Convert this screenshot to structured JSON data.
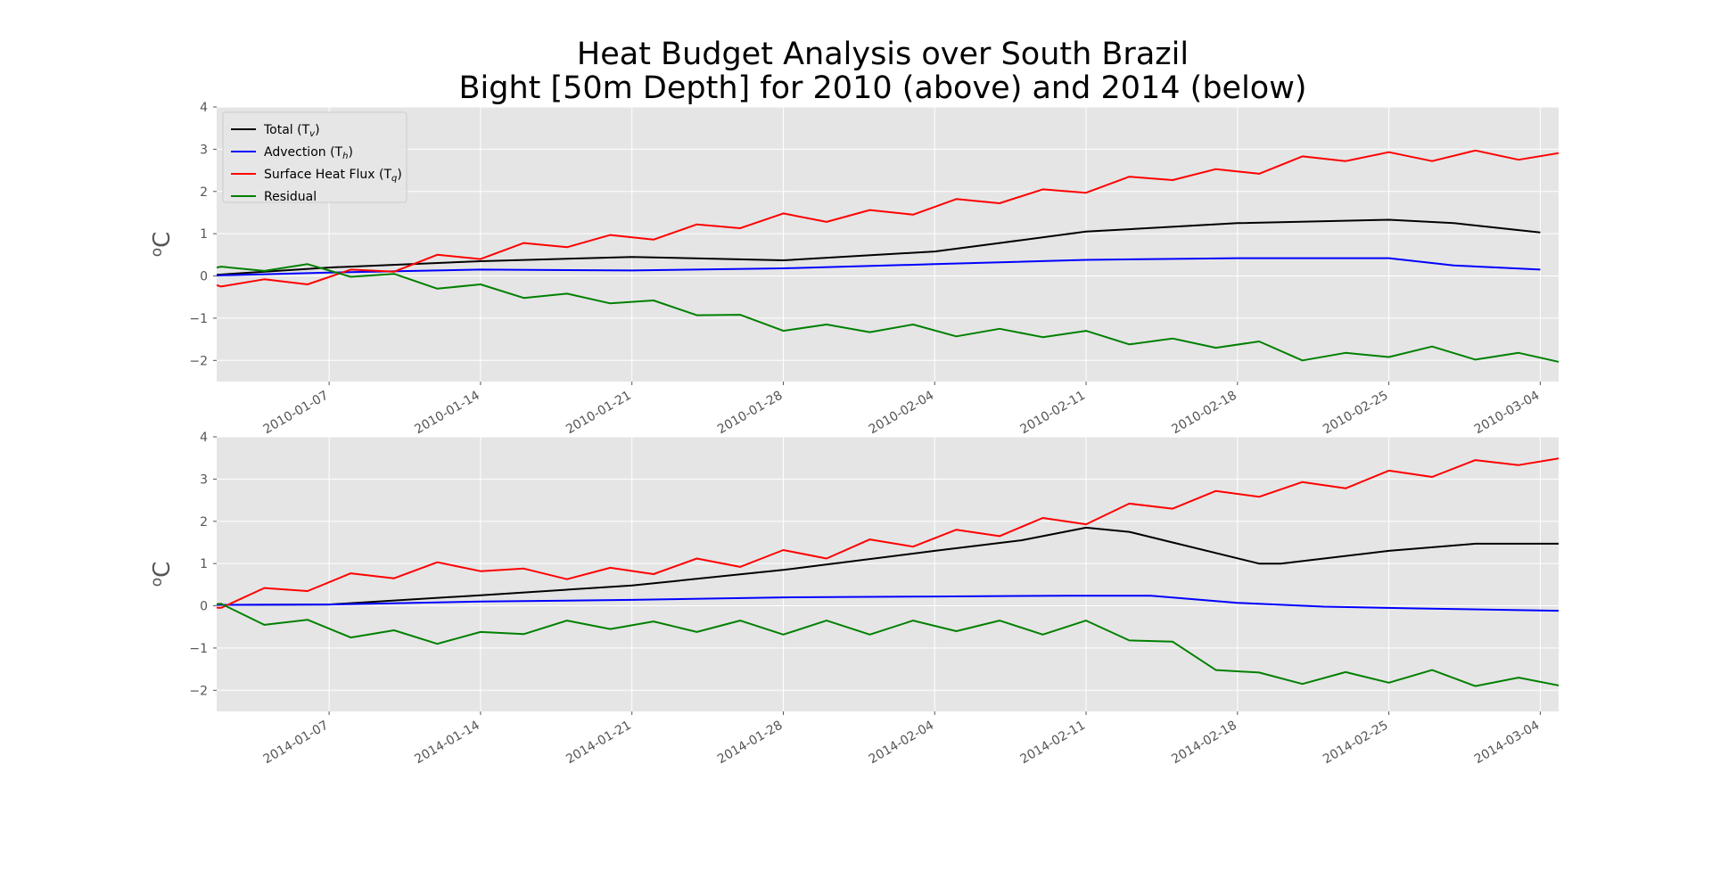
{
  "figure": {
    "title_line1": "Heat Budget Analysis over South Brazil",
    "title_line2": "Bight [50m Depth] for 2010 (above) and 2014 (below)"
  },
  "legend": {
    "items": [
      {
        "key": "total",
        "label": "Total (T",
        "sub": "v",
        "close": ")",
        "color": "#000000"
      },
      {
        "key": "advection",
        "label": "Advection (T",
        "sub": "h",
        "close": ")",
        "color": "#0000ff"
      },
      {
        "key": "surface",
        "label": "Surface Heat Flux (T",
        "sub": "q",
        "close": ")",
        "color": "#ff0000"
      },
      {
        "key": "residual",
        "label": "Residual",
        "sub": "",
        "close": "",
        "color": "#008000"
      }
    ]
  },
  "chart_data": [
    {
      "type": "line",
      "xlim": [
        "2010-01-01",
        "2010-03-05"
      ],
      "ylim": [
        -2.5,
        4
      ],
      "yticks": [
        -2,
        -1,
        0,
        1,
        2,
        3,
        4
      ],
      "xtick_labels": [
        "2010-01-07",
        "2010-01-14",
        "2010-01-21",
        "2010-01-28",
        "2010-02-04",
        "2010-02-11",
        "2010-02-18",
        "2010-02-25",
        "2010-03-04"
      ],
      "ylabel_base": "o",
      "ylabel_unit": "C",
      "grid": true,
      "legend": "top-left",
      "series": [
        {
          "name": "Total (Tv)",
          "color": "#000000",
          "x": [
            "2010-01-01",
            "2010-01-07",
            "2010-01-14",
            "2010-01-21",
            "2010-01-28",
            "2010-02-04",
            "2010-02-07",
            "2010-02-11",
            "2010-02-18",
            "2010-02-25",
            "2010-02-28",
            "2010-03-04"
          ],
          "y": [
            0.0,
            0.2,
            0.35,
            0.45,
            0.37,
            0.58,
            0.78,
            1.05,
            1.25,
            1.33,
            1.25,
            1.03
          ]
        },
        {
          "name": "Advection (Th)",
          "color": "#0000ff",
          "x": [
            "2010-01-01",
            "2010-01-07",
            "2010-01-14",
            "2010-01-21",
            "2010-01-28",
            "2010-02-04",
            "2010-02-11",
            "2010-02-18",
            "2010-02-25",
            "2010-02-28",
            "2010-03-04"
          ],
          "y": [
            0.0,
            0.08,
            0.15,
            0.13,
            0.18,
            0.28,
            0.38,
            0.42,
            0.42,
            0.25,
            0.15
          ]
        },
        {
          "name": "Surface Heat Flux (Tq)",
          "color": "#ff0000",
          "x": [
            "2010-01-01",
            "2010-01-02",
            "2010-01-04",
            "2010-01-06",
            "2010-01-08",
            "2010-01-10",
            "2010-01-12",
            "2010-01-14",
            "2010-01-16",
            "2010-01-18",
            "2010-01-20",
            "2010-01-22",
            "2010-01-24",
            "2010-01-26",
            "2010-01-28",
            "2010-01-30",
            "2010-02-01",
            "2010-02-03",
            "2010-02-05",
            "2010-02-07",
            "2010-02-09",
            "2010-02-11",
            "2010-02-13",
            "2010-02-15",
            "2010-02-17",
            "2010-02-19",
            "2010-02-21",
            "2010-02-23",
            "2010-02-25",
            "2010-02-27",
            "2010-03-01",
            "2010-03-03",
            "2010-03-05"
          ],
          "y": [
            -0.1,
            -0.25,
            -0.08,
            -0.2,
            0.15,
            0.1,
            0.5,
            0.4,
            0.78,
            0.68,
            0.97,
            0.86,
            1.22,
            1.13,
            1.48,
            1.28,
            1.56,
            1.45,
            1.82,
            1.72,
            2.05,
            1.97,
            2.35,
            2.27,
            2.53,
            2.42,
            2.83,
            2.72,
            2.93,
            2.72,
            2.97,
            2.75,
            2.92
          ]
        },
        {
          "name": "Residual",
          "color": "#008000",
          "x": [
            "2010-01-01",
            "2010-01-02",
            "2010-01-04",
            "2010-01-06",
            "2010-01-08",
            "2010-01-10",
            "2010-01-12",
            "2010-01-14",
            "2010-01-16",
            "2010-01-18",
            "2010-01-20",
            "2010-01-22",
            "2010-01-24",
            "2010-01-26",
            "2010-01-28",
            "2010-01-30",
            "2010-02-01",
            "2010-02-03",
            "2010-02-05",
            "2010-02-07",
            "2010-02-09",
            "2010-02-11",
            "2010-02-13",
            "2010-02-15",
            "2010-02-17",
            "2010-02-19",
            "2010-02-21",
            "2010-02-23",
            "2010-02-25",
            "2010-02-27",
            "2010-03-01",
            "2010-03-03",
            "2010-03-05"
          ],
          "y": [
            0.12,
            0.22,
            0.12,
            0.28,
            -0.02,
            0.05,
            -0.3,
            -0.2,
            -0.52,
            -0.42,
            -0.65,
            -0.58,
            -0.93,
            -0.92,
            -1.3,
            -1.15,
            -1.33,
            -1.15,
            -1.43,
            -1.25,
            -1.45,
            -1.3,
            -1.62,
            -1.48,
            -1.7,
            -1.55,
            -2.0,
            -1.82,
            -1.92,
            -1.67,
            -1.98,
            -1.82,
            -2.05
          ]
        }
      ]
    },
    {
      "type": "line",
      "xlim": [
        "2014-01-01",
        "2014-03-05"
      ],
      "ylim": [
        -2.5,
        4
      ],
      "yticks": [
        -2,
        -1,
        0,
        1,
        2,
        3,
        4
      ],
      "xtick_labels": [
        "2014-01-07",
        "2014-01-14",
        "2014-01-21",
        "2014-01-28",
        "2014-02-04",
        "2014-02-11",
        "2014-02-18",
        "2014-02-25",
        "2014-03-04"
      ],
      "ylabel_base": "o",
      "ylabel_unit": "C",
      "grid": true,
      "series": [
        {
          "name": "Total (Tv)",
          "color": "#000000",
          "x": [
            "2014-01-01",
            "2014-01-07",
            "2014-01-14",
            "2014-01-21",
            "2014-01-28",
            "2014-02-04",
            "2014-02-08",
            "2014-02-11",
            "2014-02-13",
            "2014-02-15",
            "2014-02-19",
            "2014-02-20",
            "2014-02-25",
            "2014-03-01",
            "2014-03-05"
          ],
          "y": [
            0.02,
            0.03,
            0.25,
            0.48,
            0.85,
            1.3,
            1.55,
            1.85,
            1.75,
            1.5,
            1.0,
            1.0,
            1.3,
            1.47,
            1.47
          ]
        },
        {
          "name": "Advection (Th)",
          "color": "#0000ff",
          "x": [
            "2014-01-01",
            "2014-01-07",
            "2014-01-14",
            "2014-01-21",
            "2014-01-28",
            "2014-02-04",
            "2014-02-10",
            "2014-02-14",
            "2014-02-18",
            "2014-02-22",
            "2014-02-26",
            "2014-03-05"
          ],
          "y": [
            0.02,
            0.03,
            0.1,
            0.14,
            0.2,
            0.22,
            0.24,
            0.24,
            0.07,
            -0.02,
            -0.06,
            -0.12
          ]
        },
        {
          "name": "Surface Heat Flux (Tq)",
          "color": "#ff0000",
          "x": [
            "2014-01-01",
            "2014-01-02",
            "2014-01-04",
            "2014-01-06",
            "2014-01-08",
            "2014-01-10",
            "2014-01-12",
            "2014-01-14",
            "2014-01-16",
            "2014-01-18",
            "2014-01-20",
            "2014-01-22",
            "2014-01-24",
            "2014-01-26",
            "2014-01-28",
            "2014-01-30",
            "2014-02-01",
            "2014-02-03",
            "2014-02-05",
            "2014-02-07",
            "2014-02-09",
            "2014-02-11",
            "2014-02-13",
            "2014-02-15",
            "2014-02-17",
            "2014-02-19",
            "2014-02-21",
            "2014-02-23",
            "2014-02-25",
            "2014-02-27",
            "2014-03-01",
            "2014-03-03",
            "2014-03-05"
          ],
          "y": [
            -0.02,
            -0.05,
            0.42,
            0.35,
            0.77,
            0.65,
            1.03,
            0.82,
            0.88,
            0.63,
            0.9,
            0.75,
            1.12,
            0.92,
            1.32,
            1.12,
            1.57,
            1.4,
            1.8,
            1.65,
            2.08,
            1.93,
            2.42,
            2.3,
            2.72,
            2.58,
            2.93,
            2.78,
            3.2,
            3.05,
            3.45,
            3.33,
            3.5
          ]
        },
        {
          "name": "Residual",
          "color": "#008000",
          "x": [
            "2014-01-01",
            "2014-01-02",
            "2014-01-04",
            "2014-01-06",
            "2014-01-08",
            "2014-01-10",
            "2014-01-12",
            "2014-01-14",
            "2014-01-16",
            "2014-01-18",
            "2014-01-20",
            "2014-01-22",
            "2014-01-24",
            "2014-01-26",
            "2014-01-28",
            "2014-01-30",
            "2014-02-01",
            "2014-02-03",
            "2014-02-05",
            "2014-02-07",
            "2014-02-09",
            "2014-02-11",
            "2014-02-13",
            "2014-02-15",
            "2014-02-17",
            "2014-02-19",
            "2014-02-21",
            "2014-02-23",
            "2014-02-25",
            "2014-02-27",
            "2014-03-01",
            "2014-03-03",
            "2014-03-05"
          ],
          "y": [
            0.0,
            0.05,
            -0.45,
            -0.33,
            -0.75,
            -0.58,
            -0.9,
            -0.62,
            -0.67,
            -0.35,
            -0.55,
            -0.37,
            -0.62,
            -0.35,
            -0.68,
            -0.35,
            -0.68,
            -0.35,
            -0.6,
            -0.35,
            -0.68,
            -0.35,
            -0.82,
            -0.85,
            -1.52,
            -1.58,
            -1.85,
            -1.57,
            -1.82,
            -1.52,
            -1.9,
            -1.7,
            -1.9
          ]
        }
      ]
    }
  ]
}
